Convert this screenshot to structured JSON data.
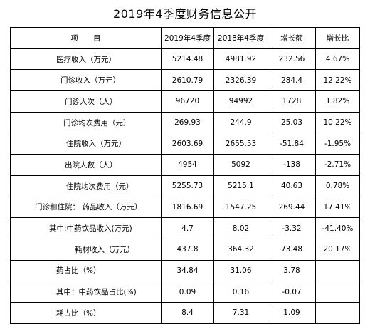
{
  "header": {
    "title": "2019年4季度财务信息公开"
  },
  "table": {
    "columns": [
      "项　　目",
      "2019年4季度",
      "2018年4季度",
      "增长额",
      "增长比"
    ],
    "rows": [
      [
        "医疗收入（万元）",
        "5214.48",
        "4981.92",
        "232.56",
        "4.67%"
      ],
      [
        "门诊收入（万元）",
        "2610.79",
        "2326.39",
        "284.4",
        "12.22%"
      ],
      [
        "门诊人次（人）",
        "96720",
        "94992",
        "1728",
        "1.82%"
      ],
      [
        "门诊均次费用（元）",
        "269.93",
        "244.9",
        "25.03",
        "10.22%"
      ],
      [
        "住院收入（万元）",
        "2603.69",
        "2655.53",
        "-51.84",
        "-1.95%"
      ],
      [
        "出院人数（人）",
        "4954",
        "5092",
        "-138",
        "-2.71%"
      ],
      [
        "住院均次费用（元）",
        "5255.73",
        "5215.1",
        "40.63",
        "0.78%"
      ],
      [
        "门诊和住院：  药品收入（万元）",
        "1816.69",
        "1547.25",
        "269.44",
        "17.41%"
      ],
      [
        "其中:中药饮品收入(万元)",
        "4.7",
        "8.02",
        "-3.32",
        "-41.40%"
      ],
      [
        "耗材收入（万元）",
        "437.8",
        "364.32",
        "73.48",
        "20.17%"
      ],
      [
        "药占比（%）",
        "34.84",
        "31.06",
        "3.78"
      ],
      [
        "其中：中药饮品占比(%)",
        "0.09",
        "0.16",
        "-0.07"
      ],
      [
        "耗占比（%）",
        "8.4",
        "7.31",
        "1.09"
      ]
    ]
  }
}
